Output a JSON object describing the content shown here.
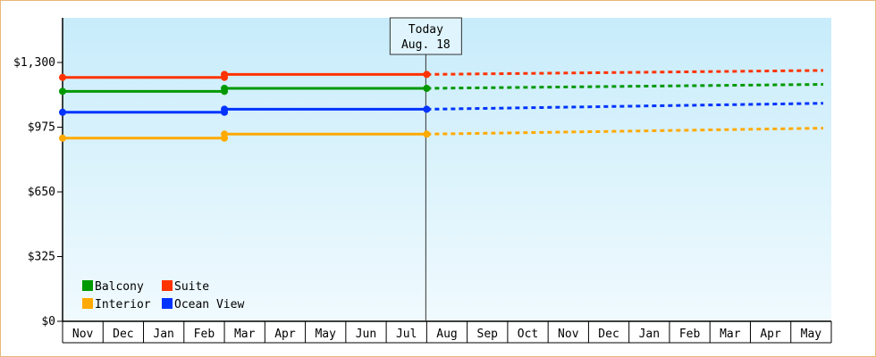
{
  "chart_data": {
    "type": "line",
    "x_categories": [
      "Nov",
      "Dec",
      "Jan",
      "Feb",
      "Mar",
      "Apr",
      "May",
      "Jun",
      "Jul",
      "Aug",
      "Sep",
      "Oct",
      "Nov",
      "Dec",
      "Jan",
      "Feb",
      "Mar",
      "Apr",
      "May"
    ],
    "y_ticks": [
      "$0",
      "$325",
      "$650",
      "$975",
      "$1,300"
    ],
    "ylim": [
      0,
      1300
    ],
    "grid": false,
    "legend_placement": "bottom-left",
    "today_marker": {
      "line1": "Today",
      "line2": "Aug. 18",
      "x_index": 9
    },
    "series": [
      {
        "name": "Suite",
        "color": "#ff3300",
        "points": [
          {
            "x": 0,
            "y": 1225
          },
          {
            "x": 4,
            "y": 1225
          },
          {
            "x": 4,
            "y": 1240
          },
          {
            "x": 9,
            "y": 1240
          }
        ],
        "forecast": [
          {
            "x": 9,
            "y": 1240
          },
          {
            "x": 18.8,
            "y": 1260
          }
        ]
      },
      {
        "name": "Balcony",
        "color": "#009900",
        "points": [
          {
            "x": 0,
            "y": 1155
          },
          {
            "x": 4,
            "y": 1155
          },
          {
            "x": 4,
            "y": 1170
          },
          {
            "x": 9,
            "y": 1170
          }
        ],
        "forecast": [
          {
            "x": 9,
            "y": 1170
          },
          {
            "x": 18.8,
            "y": 1190
          }
        ]
      },
      {
        "name": "Ocean View",
        "color": "#0033ff",
        "points": [
          {
            "x": 0,
            "y": 1050
          },
          {
            "x": 4,
            "y": 1050
          },
          {
            "x": 4,
            "y": 1065
          },
          {
            "x": 9,
            "y": 1065
          }
        ],
        "forecast": [
          {
            "x": 9,
            "y": 1065
          },
          {
            "x": 18.8,
            "y": 1095
          }
        ]
      },
      {
        "name": "Interior",
        "color": "#ffaa00",
        "points": [
          {
            "x": 0,
            "y": 920
          },
          {
            "x": 4,
            "y": 920
          },
          {
            "x": 4,
            "y": 940
          },
          {
            "x": 9,
            "y": 940
          }
        ],
        "forecast": [
          {
            "x": 9,
            "y": 940
          },
          {
            "x": 18.8,
            "y": 970
          }
        ]
      }
    ],
    "legend": [
      {
        "label": "Balcony",
        "color": "#009900"
      },
      {
        "label": "Suite",
        "color": "#ff3300"
      },
      {
        "label": "Interior",
        "color": "#ffaa00"
      },
      {
        "label": "Ocean View",
        "color": "#0033ff"
      }
    ]
  }
}
